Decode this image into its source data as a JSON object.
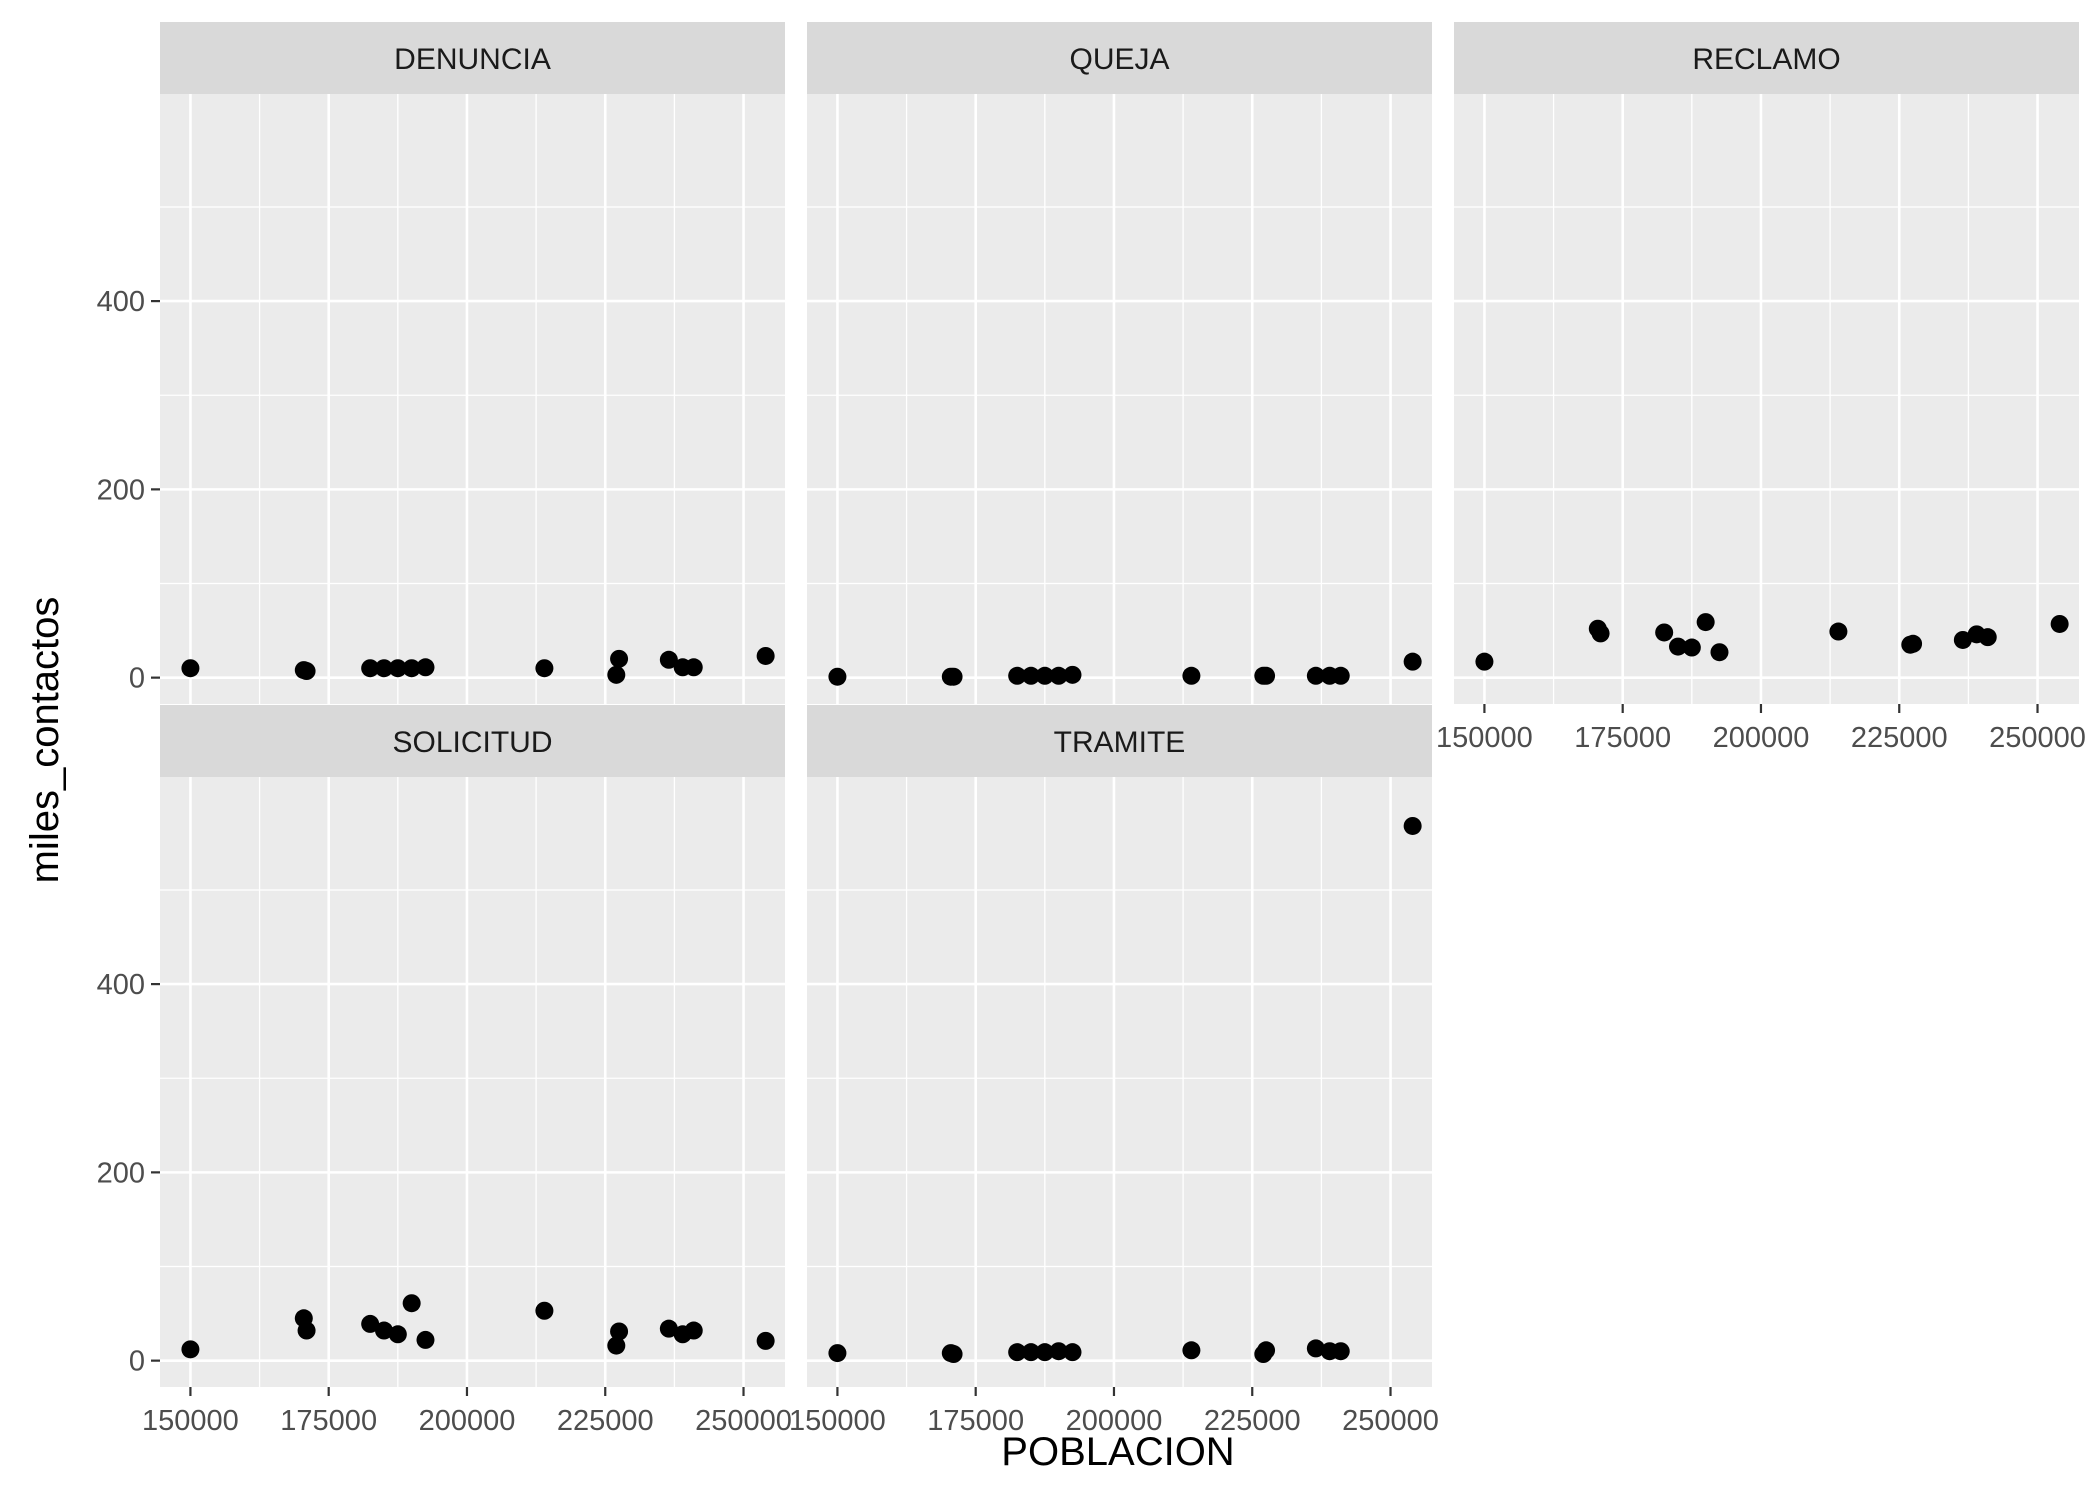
{
  "chart_data": {
    "type": "scatter",
    "xlabel": "POBLACION",
    "ylabel": "miles_contactos",
    "xlim": [
      144500,
      257500
    ],
    "ylim": [
      -28,
      620
    ],
    "x_ticks": [
      150000,
      175000,
      200000,
      225000,
      250000
    ],
    "x_tick_labels": [
      "150000",
      "175000",
      "200000",
      "225000",
      "250000"
    ],
    "y_ticks": [
      0,
      200,
      400
    ],
    "y_tick_labels": [
      "0",
      "200",
      "400"
    ],
    "grid": true,
    "colors": {
      "panel": "#ebebeb",
      "strip": "#d9d9d9",
      "grid": "#ffffff",
      "point": "#000000"
    },
    "panels": [
      {
        "name": "DENUNCIA",
        "x": [
          150000,
          170500,
          171000,
          182500,
          185000,
          187500,
          190000,
          192500,
          214000,
          227000,
          227500,
          236500,
          239000,
          241000,
          254000
        ],
        "y": [
          10,
          8,
          7,
          10,
          10,
          10,
          10,
          11,
          10,
          3,
          20,
          19,
          11,
          11,
          23
        ]
      },
      {
        "name": "QUEJA",
        "x": [
          150000,
          170500,
          171000,
          182500,
          185000,
          187500,
          190000,
          192500,
          214000,
          227000,
          227500,
          236500,
          239000,
          241000,
          254000
        ],
        "y": [
          1,
          1,
          1,
          2,
          2,
          2,
          2,
          3,
          2,
          2,
          2,
          2,
          2,
          2,
          17
        ]
      },
      {
        "name": "RECLAMO",
        "x": [
          150000,
          170500,
          171000,
          182500,
          185000,
          187500,
          190000,
          192500,
          214000,
          227000,
          227500,
          236500,
          239000,
          241000,
          254000
        ],
        "y": [
          17,
          52,
          47,
          48,
          33,
          32,
          59,
          27,
          49,
          35,
          36,
          40,
          46,
          43,
          57
        ]
      },
      {
        "name": "SOLICITUD",
        "x": [
          150000,
          170500,
          171000,
          182500,
          185000,
          187500,
          190000,
          192500,
          214000,
          227000,
          227500,
          236500,
          239000,
          241000,
          254000
        ],
        "y": [
          12,
          45,
          32,
          39,
          32,
          28,
          61,
          22,
          53,
          16,
          31,
          34,
          28,
          32,
          21
        ]
      },
      {
        "name": "TRAMITE",
        "x": [
          150000,
          170500,
          171000,
          182500,
          185000,
          187500,
          190000,
          192500,
          214000,
          227000,
          227500,
          236500,
          239000,
          241000,
          254000
        ],
        "y": [
          8,
          8,
          7,
          9,
          9,
          9,
          10,
          9,
          11,
          7,
          11,
          13,
          10,
          10,
          568
        ]
      }
    ]
  }
}
